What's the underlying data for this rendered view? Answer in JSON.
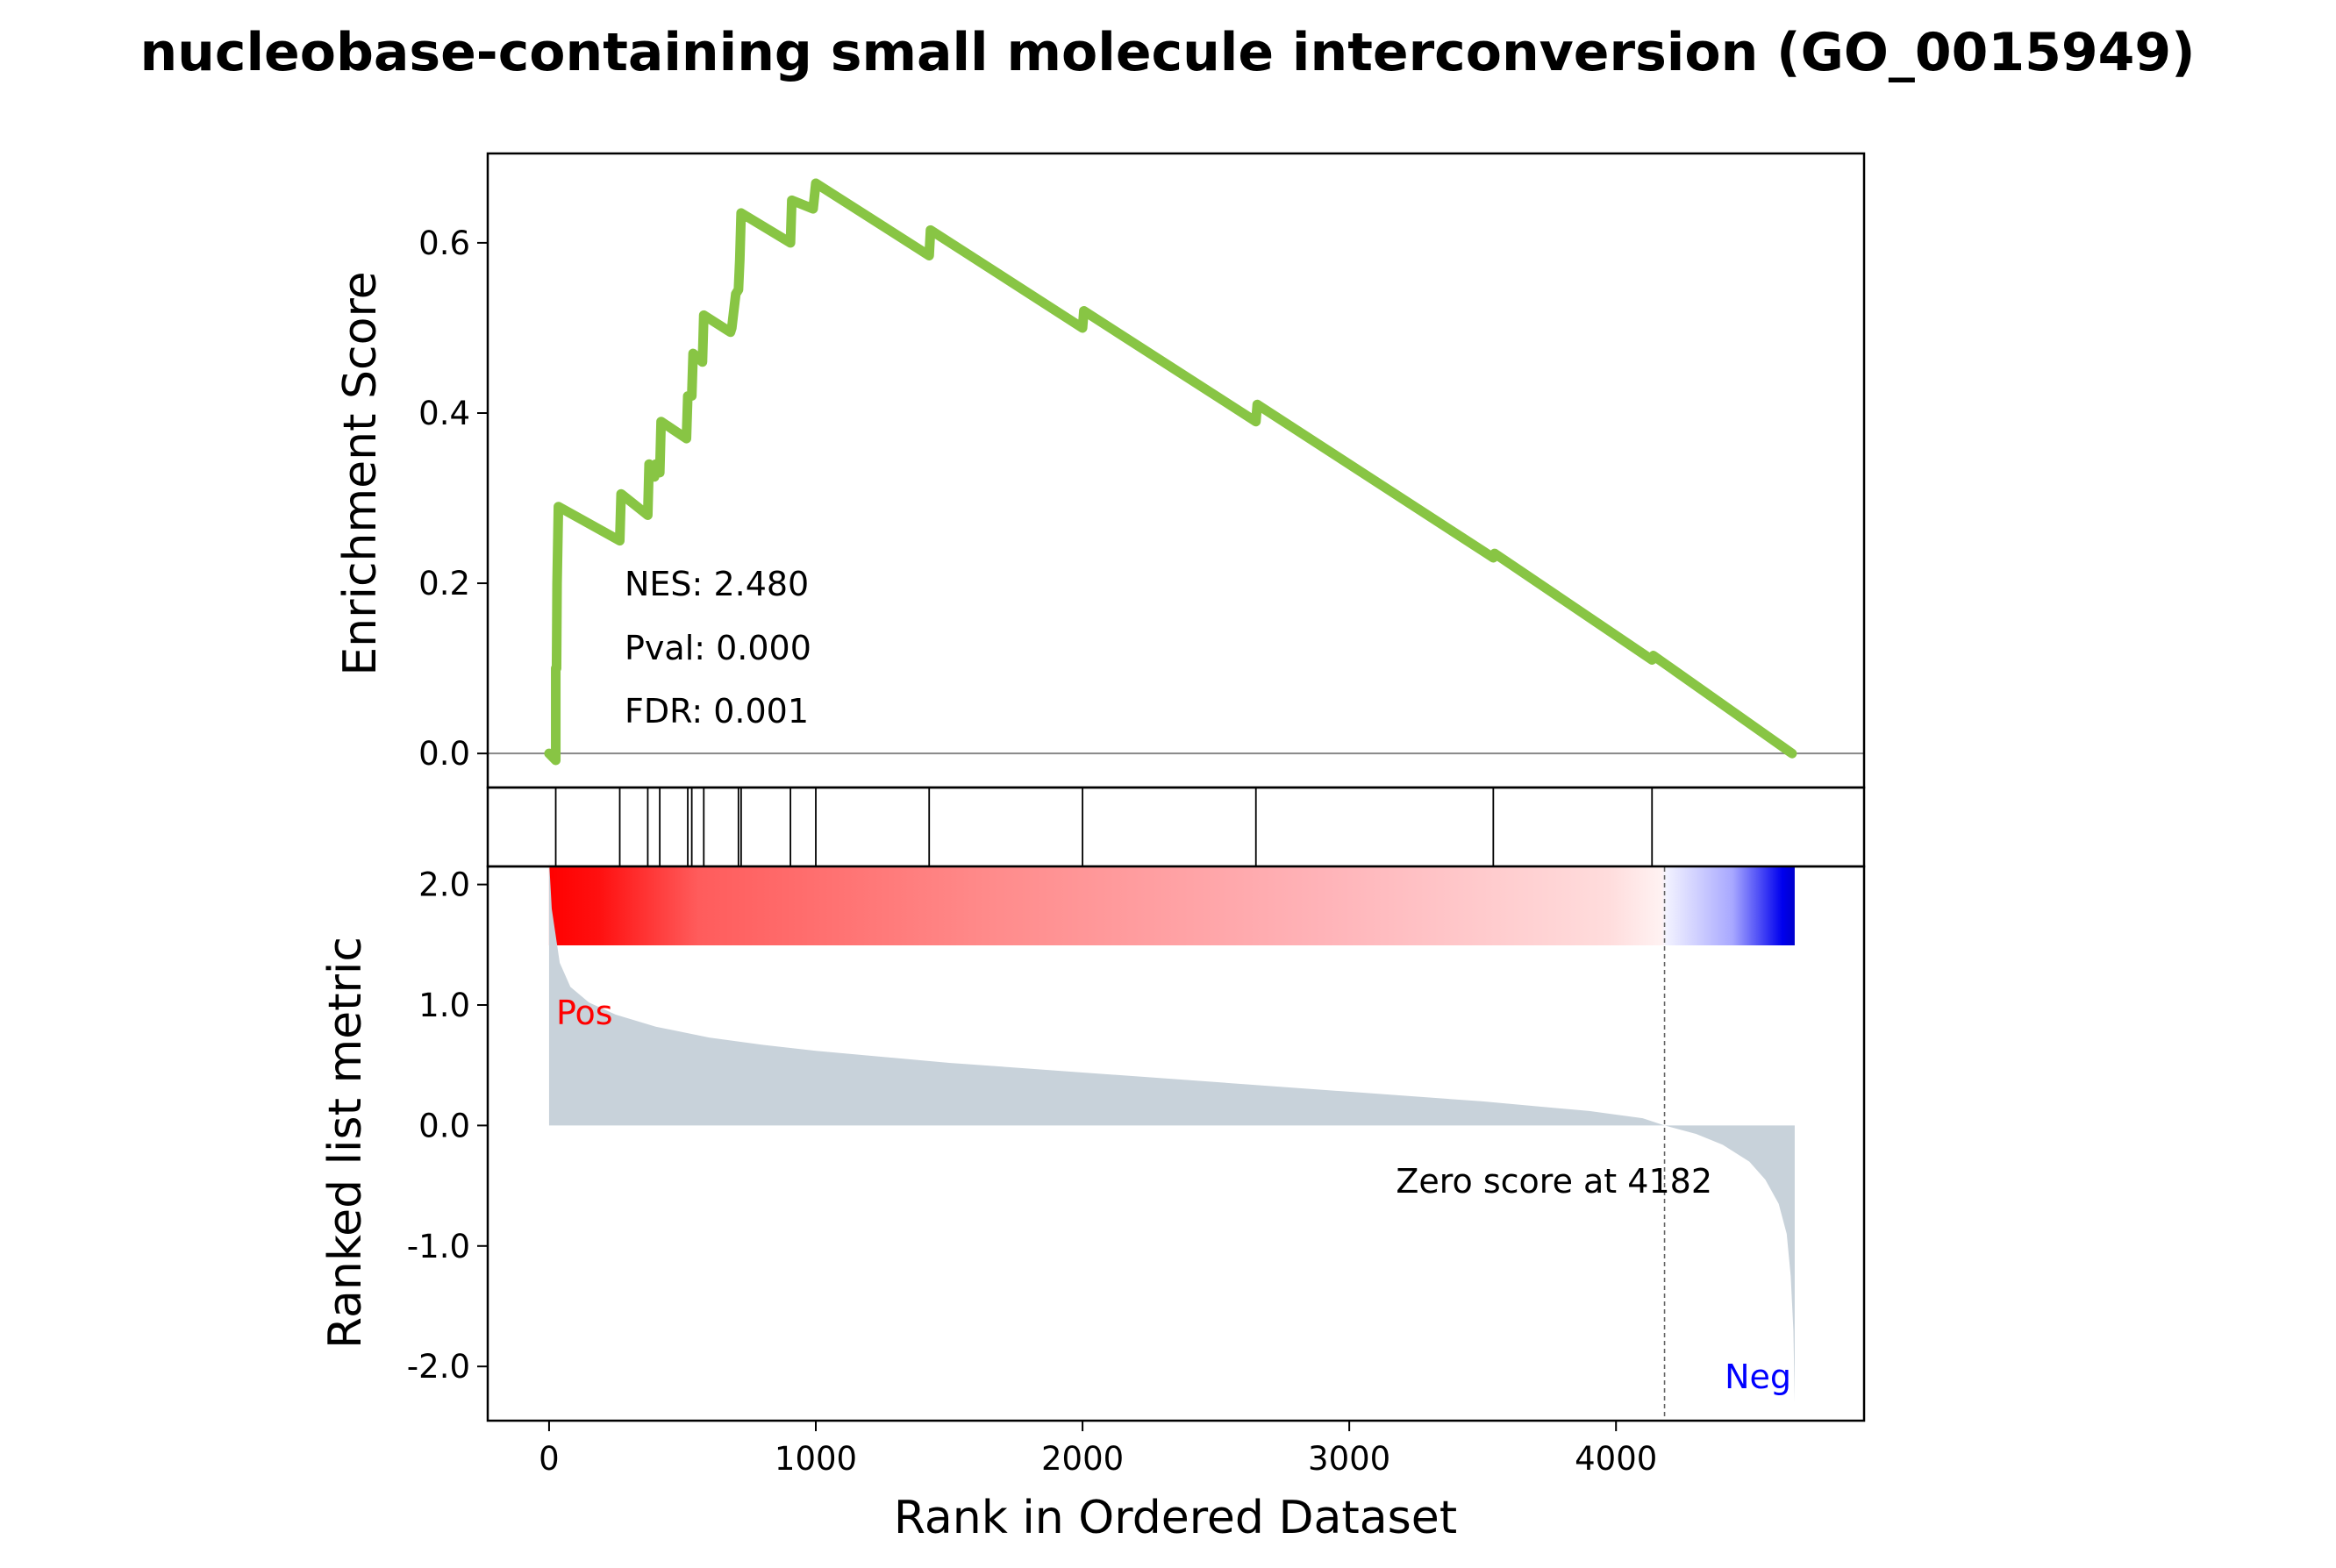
{
  "chart_data": {
    "type": "line",
    "title": "nucleobase-containing small molecule interconversion (GO_0015949)",
    "xlabel": "Rank in Ordered Dataset",
    "xlim": [
      -230,
      4930
    ],
    "x_ticks": [
      0,
      1000,
      2000,
      3000,
      4000
    ],
    "x_tick_labels": [
      "0",
      "1000",
      "2000",
      "3000",
      "4000"
    ],
    "enrichment": {
      "ylabel": "Enrichment Score",
      "ylim": [
        -0.04,
        0.705
      ],
      "y_ticks": [
        0.0,
        0.2,
        0.4,
        0.6
      ],
      "y_tick_labels": [
        "0.0",
        "0.2",
        "0.4",
        "0.6"
      ],
      "line_color": "#88c544",
      "zero_line_color": "#888888",
      "x": [
        0,
        25,
        25,
        28,
        30,
        35,
        265,
        270,
        370,
        375,
        395,
        400,
        415,
        420,
        515,
        520,
        535,
        540,
        575,
        580,
        680,
        685,
        700,
        710,
        715,
        720,
        905,
        910,
        990,
        1000,
        1425,
        1430,
        2000,
        2005,
        2650,
        2655,
        3540,
        3545,
        4135,
        4140,
        4660
      ],
      "y": [
        0.0,
        -0.008,
        0.1,
        0.1,
        0.2,
        0.29,
        0.25,
        0.305,
        0.28,
        0.34,
        0.325,
        0.34,
        0.33,
        0.39,
        0.37,
        0.42,
        0.42,
        0.47,
        0.46,
        0.515,
        0.495,
        0.5,
        0.54,
        0.545,
        0.58,
        0.635,
        0.6,
        0.65,
        0.64,
        0.67,
        0.585,
        0.615,
        0.5,
        0.52,
        0.39,
        0.41,
        0.23,
        0.235,
        0.11,
        0.115,
        0.0
      ],
      "stats": [
        "NES: 2.480",
        "Pval: 0.000",
        "FDR: 0.001"
      ]
    },
    "hits": [
      25,
      265,
      370,
      415,
      520,
      535,
      580,
      710,
      720,
      905,
      1000,
      1425,
      2000,
      2650,
      3540,
      4135
    ],
    "ranked_metric": {
      "ylabel": "Ranked list metric",
      "ylim": [
        -2.45,
        2.15
      ],
      "y_ticks": [
        2.0,
        1.0,
        0.0,
        -1.0,
        -2.0
      ],
      "y_tick_labels": [
        "2.0",
        "1.0",
        "0.0",
        "-1.0",
        "-2.0"
      ],
      "fill_color": "#c8d2da",
      "n_genes": 4670,
      "zero_cross": 4182,
      "zero_text": "Zero score at 4182",
      "pos_label": "Pos",
      "neg_label": "Neg",
      "pos_color": "#ff0000",
      "neg_color": "#0000ff",
      "curve_x": [
        0,
        10,
        40,
        80,
        150,
        250,
        400,
        600,
        800,
        1000,
        1500,
        2000,
        2500,
        3000,
        3500,
        3900,
        4100,
        4182,
        4300,
        4400,
        4500,
        4560,
        4610,
        4640,
        4655,
        4665,
        4670
      ],
      "curve_y": [
        2.2,
        1.8,
        1.35,
        1.15,
        1.02,
        0.92,
        0.82,
        0.73,
        0.67,
        0.62,
        0.52,
        0.44,
        0.36,
        0.28,
        0.2,
        0.12,
        0.06,
        0.0,
        -0.07,
        -0.16,
        -0.3,
        -0.45,
        -0.65,
        -0.9,
        -1.25,
        -1.7,
        -2.3
      ]
    }
  }
}
